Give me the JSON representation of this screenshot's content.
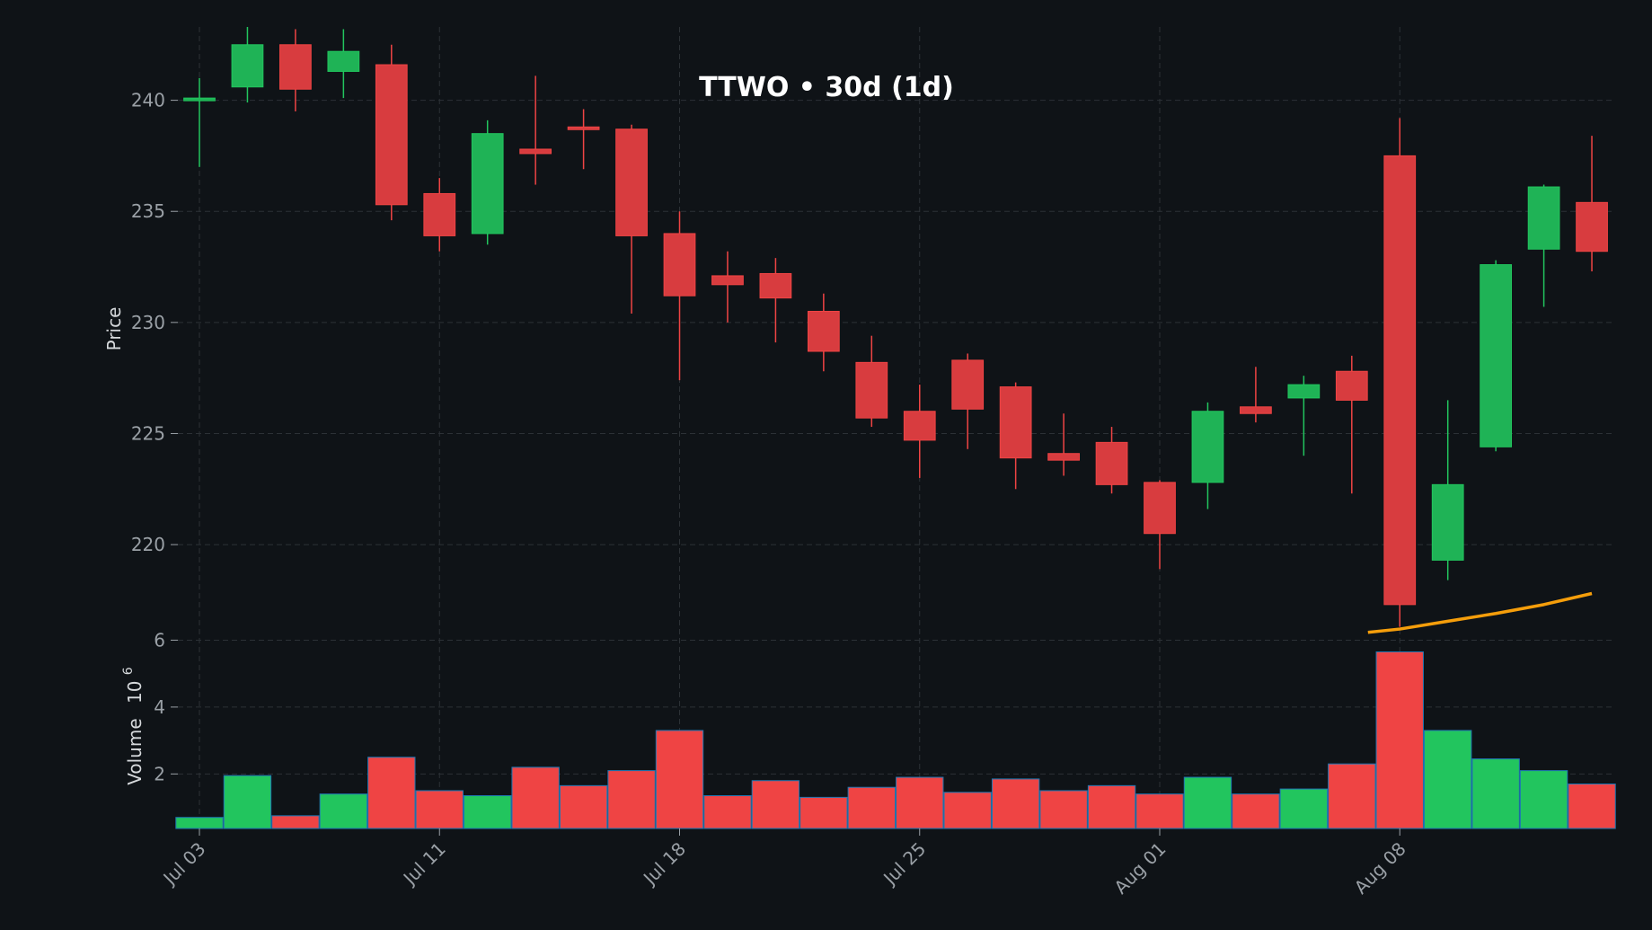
{
  "chart_data": {
    "type": "candlestick",
    "title": "TTWO • 30d (1d)",
    "ylabel": "Price",
    "volume_label": "Volume",
    "volume_exponent_base": "10",
    "volume_exponent": "6",
    "ylim": [
      216,
      243.3
    ],
    "volume_ylim": [
      0.37,
      6.2
    ],
    "yticks": [
      220,
      225,
      230,
      235,
      240
    ],
    "volume_yticks": [
      2,
      4,
      6
    ],
    "xtick_labels": [
      {
        "i": 0,
        "label": "Jul 03"
      },
      {
        "i": 5,
        "label": "Jul 11"
      },
      {
        "i": 10,
        "label": "Jul 18"
      },
      {
        "i": 15,
        "label": "Jul 25"
      },
      {
        "i": 20,
        "label": "Aug 01"
      },
      {
        "i": 25,
        "label": "Aug 08"
      }
    ],
    "grid": true,
    "colors": {
      "up": "#22c55e",
      "down": "#ef4444",
      "ma": "#f59e0b",
      "background": "#0f1317",
      "grid": "#2c3136",
      "text": "#9aa0a6",
      "title": "#ffffff",
      "volume_edge": "#1f77b4"
    },
    "candles": [
      {
        "o": 240.1,
        "h": 241.0,
        "l": 237.0,
        "c": 240.1,
        "v": 0.7
      },
      {
        "o": 240.6,
        "h": 243.3,
        "l": 239.9,
        "c": 242.5,
        "v": 1.95
      },
      {
        "o": 242.5,
        "h": 243.2,
        "l": 239.5,
        "c": 240.5,
        "v": 0.75
      },
      {
        "o": 241.3,
        "h": 243.2,
        "l": 240.1,
        "c": 242.2,
        "v": 1.4
      },
      {
        "o": 241.6,
        "h": 242.5,
        "l": 234.6,
        "c": 235.3,
        "v": 2.5
      },
      {
        "o": 235.8,
        "h": 236.5,
        "l": 233.2,
        "c": 233.9,
        "v": 1.5
      },
      {
        "o": 234.0,
        "h": 239.1,
        "l": 233.5,
        "c": 238.5,
        "v": 1.35
      },
      {
        "o": 237.8,
        "h": 241.1,
        "l": 236.2,
        "c": 237.6,
        "v": 2.2
      },
      {
        "o": 238.8,
        "h": 239.6,
        "l": 236.9,
        "c": 238.7,
        "v": 1.65
      },
      {
        "o": 238.7,
        "h": 238.9,
        "l": 230.4,
        "c": 233.9,
        "v": 2.1
      },
      {
        "o": 234.0,
        "h": 235.0,
        "l": 227.4,
        "c": 231.2,
        "v": 3.3
      },
      {
        "o": 232.1,
        "h": 233.2,
        "l": 230.0,
        "c": 231.7,
        "v": 1.35
      },
      {
        "o": 232.2,
        "h": 232.9,
        "l": 229.1,
        "c": 231.1,
        "v": 1.8
      },
      {
        "o": 230.5,
        "h": 231.3,
        "l": 227.8,
        "c": 228.7,
        "v": 1.3
      },
      {
        "o": 228.2,
        "h": 229.4,
        "l": 225.3,
        "c": 225.7,
        "v": 1.6
      },
      {
        "o": 226.0,
        "h": 227.2,
        "l": 223.0,
        "c": 224.7,
        "v": 1.9
      },
      {
        "o": 228.3,
        "h": 228.6,
        "l": 224.3,
        "c": 226.1,
        "v": 1.45
      },
      {
        "o": 227.1,
        "h": 227.3,
        "l": 222.5,
        "c": 223.9,
        "v": 1.85
      },
      {
        "o": 224.1,
        "h": 225.9,
        "l": 223.1,
        "c": 223.8,
        "v": 1.5
      },
      {
        "o": 224.6,
        "h": 225.3,
        "l": 222.3,
        "c": 222.7,
        "v": 1.65
      },
      {
        "o": 222.8,
        "h": 222.9,
        "l": 218.9,
        "c": 220.5,
        "v": 1.4
      },
      {
        "o": 222.8,
        "h": 226.4,
        "l": 221.6,
        "c": 226.0,
        "v": 1.9
      },
      {
        "o": 226.2,
        "h": 228.0,
        "l": 225.5,
        "c": 225.9,
        "v": 1.4
      },
      {
        "o": 226.6,
        "h": 227.6,
        "l": 224.0,
        "c": 227.2,
        "v": 1.55
      },
      {
        "o": 227.8,
        "h": 228.5,
        "l": 222.3,
        "c": 226.5,
        "v": 2.3
      },
      {
        "o": 237.5,
        "h": 239.2,
        "l": 216.3,
        "c": 217.3,
        "v": 5.65
      },
      {
        "o": 219.3,
        "h": 226.5,
        "l": 218.4,
        "c": 222.7,
        "v": 3.3
      },
      {
        "o": 224.4,
        "h": 232.8,
        "l": 224.2,
        "c": 232.6,
        "v": 2.45
      },
      {
        "o": 233.3,
        "h": 236.2,
        "l": 230.7,
        "c": 236.1,
        "v": 2.1
      },
      {
        "o": 235.4,
        "h": 238.4,
        "l": 232.3,
        "c": 233.2,
        "v": 1.7
      }
    ],
    "ma_line": [
      {
        "i": 24,
        "y": 216.05
      },
      {
        "i": 25,
        "y": 216.2
      },
      {
        "i": 26,
        "y": 216.55
      },
      {
        "i": 27,
        "y": 216.9
      },
      {
        "i": 28,
        "y": 217.3
      },
      {
        "i": 29,
        "y": 217.8
      }
    ]
  }
}
